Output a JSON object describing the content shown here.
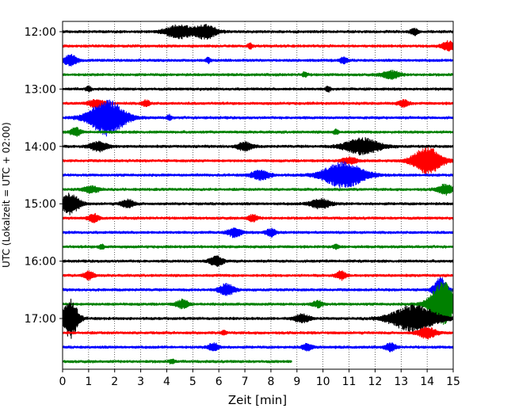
{
  "chart_data": {
    "type": "line",
    "title": "",
    "xlabel": "Zeit  [min]",
    "ylabel": "UTC (Lokalzeit = UTC + 02:00)",
    "xlim": [
      0,
      15
    ],
    "x_ticks": [
      "0",
      "1",
      "2",
      "3",
      "4",
      "5",
      "6",
      "7",
      "8",
      "9",
      "10",
      "11",
      "12",
      "13",
      "14",
      "15"
    ],
    "y_ticks": [
      {
        "label": "12:00",
        "row": 0
      },
      {
        "label": "13:00",
        "row": 4
      },
      {
        "label": "14:00",
        "row": 8
      },
      {
        "label": "15:00",
        "row": 12
      },
      {
        "label": "16:00",
        "row": 16
      },
      {
        "label": "17:00",
        "row": 20
      }
    ],
    "grid": "vertical-dotted",
    "colors": [
      "#000000",
      "#ff0000",
      "#0000ff",
      "#008000"
    ],
    "base_amplitude": 2.2,
    "rows": [
      {
        "time": "12:00",
        "end_min": 15,
        "events": [
          {
            "t": 4.5,
            "a": 8,
            "w": 0.55
          },
          {
            "t": 5.5,
            "a": 9,
            "w": 0.4
          },
          {
            "t": 13.5,
            "a": 4,
            "w": 0.15
          }
        ]
      },
      {
        "time": "12:15",
        "end_min": 15,
        "events": [
          {
            "t": 14.8,
            "a": 6,
            "w": 0.25
          },
          {
            "t": 7.2,
            "a": 3,
            "w": 0.1
          }
        ]
      },
      {
        "time": "12:30",
        "end_min": 15,
        "events": [
          {
            "t": 0.3,
            "a": 7,
            "w": 0.25
          },
          {
            "t": 10.8,
            "a": 4,
            "w": 0.15
          },
          {
            "t": 5.6,
            "a": 3,
            "w": 0.1
          }
        ]
      },
      {
        "time": "12:45",
        "end_min": 15,
        "events": [
          {
            "t": 12.6,
            "a": 5,
            "w": 0.35
          },
          {
            "t": 9.3,
            "a": 3,
            "w": 0.1
          }
        ]
      },
      {
        "time": "13:00",
        "end_min": 15,
        "events": [
          {
            "t": 1.0,
            "a": 3,
            "w": 0.1
          },
          {
            "t": 10.2,
            "a": 3,
            "w": 0.1
          }
        ]
      },
      {
        "time": "13:15",
        "end_min": 15,
        "events": [
          {
            "t": 1.3,
            "a": 5,
            "w": 0.3
          },
          {
            "t": 3.2,
            "a": 4,
            "w": 0.15
          },
          {
            "t": 13.1,
            "a": 4,
            "w": 0.2
          }
        ]
      },
      {
        "time": "13:30",
        "end_min": 15,
        "events": [
          {
            "t": 1.7,
            "a": 22,
            "w": 0.7
          },
          {
            "t": 4.1,
            "a": 3,
            "w": 0.1
          }
        ]
      },
      {
        "time": "13:45",
        "end_min": 15,
        "events": [
          {
            "t": 0.5,
            "a": 5,
            "w": 0.2
          },
          {
            "t": 10.5,
            "a": 3,
            "w": 0.1
          }
        ]
      },
      {
        "time": "14:00",
        "end_min": 15,
        "events": [
          {
            "t": 1.4,
            "a": 6,
            "w": 0.35
          },
          {
            "t": 7.0,
            "a": 5,
            "w": 0.3
          },
          {
            "t": 11.5,
            "a": 10,
            "w": 0.7
          }
        ]
      },
      {
        "time": "14:15",
        "end_min": 15,
        "events": [
          {
            "t": 11.0,
            "a": 4,
            "w": 0.3
          },
          {
            "t": 14.0,
            "a": 17,
            "w": 0.55
          }
        ]
      },
      {
        "time": "14:30",
        "end_min": 15,
        "events": [
          {
            "t": 7.6,
            "a": 6,
            "w": 0.35
          },
          {
            "t": 10.8,
            "a": 16,
            "w": 0.8
          }
        ]
      },
      {
        "time": "14:45",
        "end_min": 15,
        "events": [
          {
            "t": 1.1,
            "a": 4,
            "w": 0.3
          },
          {
            "t": 14.7,
            "a": 6,
            "w": 0.3
          }
        ]
      },
      {
        "time": "15:00",
        "end_min": 15,
        "events": [
          {
            "t": 0.3,
            "a": 13,
            "w": 0.35
          },
          {
            "t": 2.5,
            "a": 5,
            "w": 0.25
          },
          {
            "t": 9.9,
            "a": 6,
            "w": 0.4
          }
        ]
      },
      {
        "time": "15:15",
        "end_min": 15,
        "events": [
          {
            "t": 1.2,
            "a": 5,
            "w": 0.2
          },
          {
            "t": 7.3,
            "a": 4,
            "w": 0.2
          }
        ]
      },
      {
        "time": "15:30",
        "end_min": 15,
        "events": [
          {
            "t": 6.6,
            "a": 6,
            "w": 0.25
          },
          {
            "t": 8.0,
            "a": 5,
            "w": 0.2
          }
        ]
      },
      {
        "time": "15:45",
        "end_min": 15,
        "events": [
          {
            "t": 1.5,
            "a": 3,
            "w": 0.1
          },
          {
            "t": 10.5,
            "a": 3,
            "w": 0.1
          }
        ]
      },
      {
        "time": "16:00",
        "end_min": 15,
        "events": [
          {
            "t": 5.9,
            "a": 7,
            "w": 0.25
          }
        ]
      },
      {
        "time": "16:15",
        "end_min": 15,
        "events": [
          {
            "t": 1.0,
            "a": 5,
            "w": 0.2
          },
          {
            "t": 10.7,
            "a": 5,
            "w": 0.2
          }
        ]
      },
      {
        "time": "16:30",
        "end_min": 15,
        "events": [
          {
            "t": 6.3,
            "a": 7,
            "w": 0.3
          },
          {
            "t": 14.5,
            "a": 16,
            "w": 0.25
          }
        ]
      },
      {
        "time": "16:45",
        "end_min": 15,
        "events": [
          {
            "t": 4.6,
            "a": 5,
            "w": 0.25
          },
          {
            "t": 9.8,
            "a": 4,
            "w": 0.2
          },
          {
            "t": 14.6,
            "a": 28,
            "w": 0.5
          }
        ]
      },
      {
        "time": "17:00",
        "end_min": 15,
        "events": [
          {
            "t": 0.3,
            "a": 24,
            "w": 0.3
          },
          {
            "t": 9.2,
            "a": 5,
            "w": 0.3
          },
          {
            "t": 13.5,
            "a": 16,
            "w": 0.9
          }
        ]
      },
      {
        "time": "17:15",
        "end_min": 15,
        "events": [
          {
            "t": 14.0,
            "a": 7,
            "w": 0.35
          },
          {
            "t": 6.2,
            "a": 3,
            "w": 0.1
          }
        ]
      },
      {
        "time": "17:30",
        "end_min": 15,
        "events": [
          {
            "t": 5.8,
            "a": 5,
            "w": 0.2
          },
          {
            "t": 9.4,
            "a": 4,
            "w": 0.2
          },
          {
            "t": 12.6,
            "a": 5,
            "w": 0.2
          }
        ]
      },
      {
        "time": "17:45",
        "end_min": 8.8,
        "events": [
          {
            "t": 4.2,
            "a": 3,
            "w": 0.1
          }
        ]
      }
    ]
  }
}
